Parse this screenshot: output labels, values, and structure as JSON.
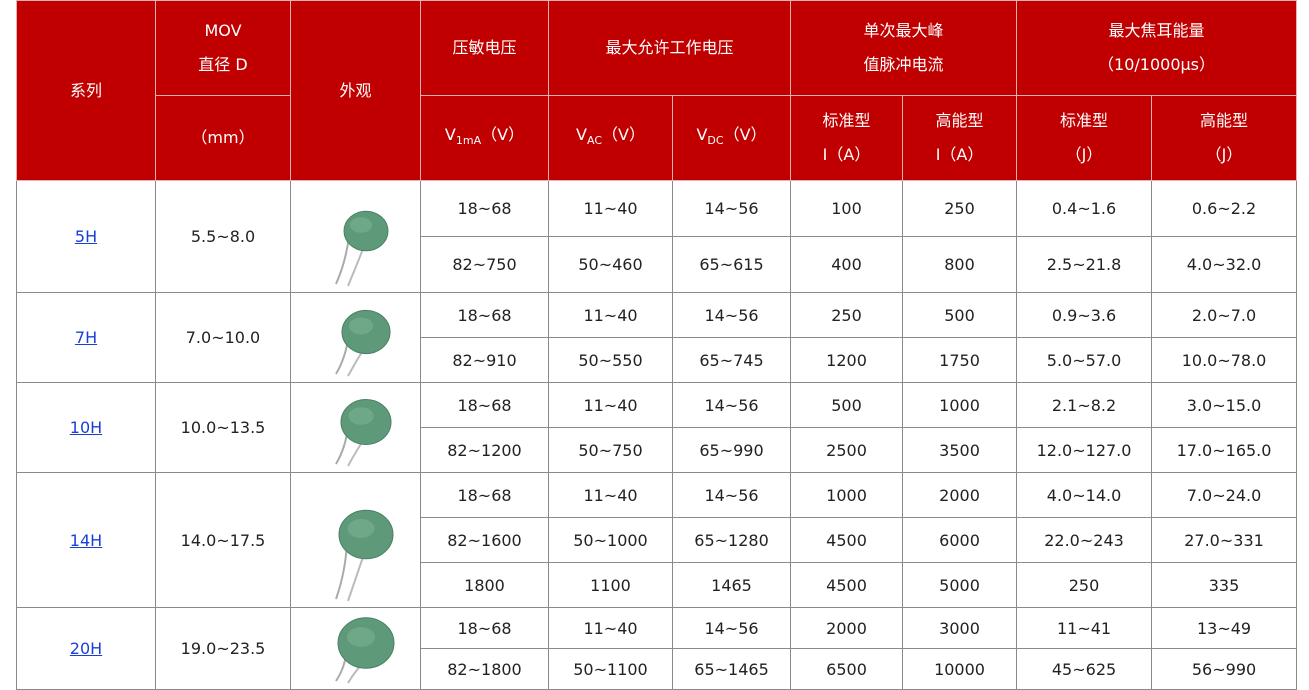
{
  "header": {
    "series": "系列",
    "mov_line1": "MOV",
    "mov_line2": "直径 D",
    "mov_unit": "（mm）",
    "appearance": "外观",
    "varistor_voltage": "压敏电压",
    "v1ma": {
      "symbol": "V",
      "sub": "1mA",
      "unit": "（V）"
    },
    "max_working_voltage": "最大允许工作电压",
    "vac": {
      "symbol": "V",
      "sub": "AC",
      "unit": "（V）"
    },
    "vdc": {
      "symbol": "V",
      "sub": "DC",
      "unit": "（V）"
    },
    "peak_current_line1": "单次最大峰",
    "peak_current_line2": "值脉冲电流",
    "current_standard": "标准型",
    "current_standard_unit": "I（A）",
    "current_high": "高能型",
    "current_high_unit": "I（A）",
    "energy_line1": "最大焦耳能量",
    "energy_line2": "（10/1000μs）",
    "energy_standard": "标准型",
    "energy_standard_unit": "（J）",
    "energy_high": "高能型",
    "energy_high_unit": "（J）"
  },
  "groups": [
    {
      "series": "5H",
      "diameter": "5.5~8.0",
      "rows": [
        [
          "18~68",
          "11~40",
          "14~56",
          "100",
          "250",
          "0.4~1.6",
          "0.6~2.2"
        ],
        [
          "82~750",
          "50~460",
          "65~615",
          "400",
          "800",
          "2.5~21.8",
          "4.0~32.0"
        ]
      ]
    },
    {
      "series": "7H",
      "diameter": "7.0~10.0",
      "rows": [
        [
          "18~68",
          "11~40",
          "14~56",
          "250",
          "500",
          "0.9~3.6",
          "2.0~7.0"
        ],
        [
          "82~910",
          "50~550",
          "65~745",
          "1200",
          "1750",
          "5.0~57.0",
          "10.0~78.0"
        ]
      ]
    },
    {
      "series": "10H",
      "diameter": "10.0~13.5",
      "rows": [
        [
          "18~68",
          "11~40",
          "14~56",
          "500",
          "1000",
          "2.1~8.2",
          "3.0~15.0"
        ],
        [
          "82~1200",
          "50~750",
          "65~990",
          "2500",
          "3500",
          "12.0~127.0",
          "17.0~165.0"
        ]
      ]
    },
    {
      "series": "14H",
      "diameter": "14.0~17.5",
      "rows": [
        [
          "18~68",
          "11~40",
          "14~56",
          "1000",
          "2000",
          "4.0~14.0",
          "7.0~24.0"
        ],
        [
          "82~1600",
          "50~1000",
          "65~1280",
          "4500",
          "6000",
          "22.0~243",
          "27.0~331"
        ],
        [
          "1800",
          "1100",
          "1465",
          "4500",
          "5000",
          "250",
          "335"
        ]
      ]
    },
    {
      "series": "20H",
      "diameter": "19.0~23.5",
      "rows": [
        [
          "18~68",
          "11~40",
          "14~56",
          "2000",
          "3000",
          "11~41",
          "13~49"
        ],
        [
          "82~1800",
          "50~1100",
          "65~1465",
          "6500",
          "10000",
          "45~625",
          "56~990"
        ]
      ]
    }
  ]
}
